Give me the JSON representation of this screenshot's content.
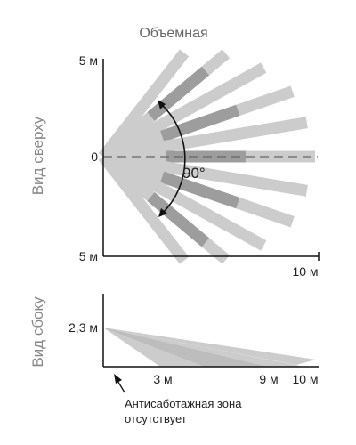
{
  "title": "Объемная",
  "top_view": {
    "label": "Вид сверху",
    "y_top": "5 м",
    "y_center": "0",
    "y_bottom": "5 м",
    "x_end": "10 м",
    "angle": "90°"
  },
  "side_view": {
    "label": "Вид сбоку",
    "height": "2,3 м",
    "tick_3": "3 м",
    "tick_9": "9 м",
    "tick_10": "10 м",
    "note_line1": "Антисаботажная зона",
    "note_line2": "отсутствует"
  },
  "colors": {
    "beam_light": "#cccccc",
    "beam_dark": "#9d9d9d",
    "axis": "#111111",
    "text": "#222222",
    "title_text": "#666666",
    "side_label_text": "#888888"
  }
}
